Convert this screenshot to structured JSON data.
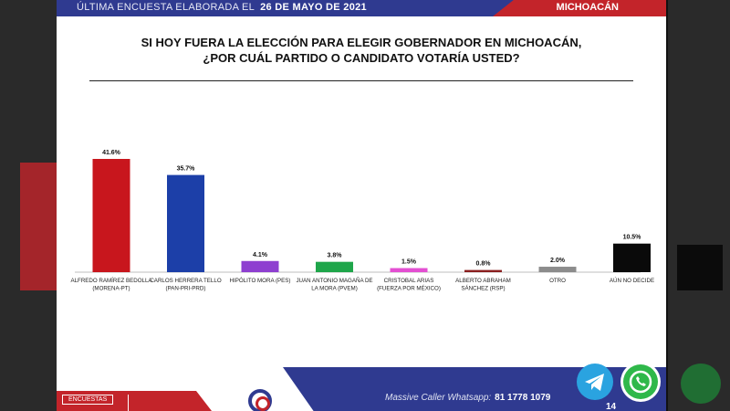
{
  "header": {
    "survey_label": "ÚLTIMA ENCUESTA ELABORADA EL",
    "survey_date": "26 DE MAYO DE 2021",
    "region": "MICHOACÁN"
  },
  "question": {
    "line1": "SI HOY FUERA LA ELECCIÓN PARA ELEGIR GOBERNADOR EN MICHOACÁN,",
    "line2": "¿POR CUÁL PARTIDO O CANDIDATO VOTARÍA USTED?"
  },
  "chart_data": {
    "type": "bar",
    "categories": [
      [
        "ALFREDO RAMÍREZ BEDOLLA",
        "(MORENA-PT)"
      ],
      [
        "CARLOS HERRERA TELLO",
        "(PAN-PRI-PRD)"
      ],
      [
        "HIPÓLITO MORA (PES)"
      ],
      [
        "JUAN ANTONIO MAGAÑA DE",
        "LA MORA (PVEM)"
      ],
      [
        "CRISTOBAL ARIAS",
        "(FUERZA POR MÉXICO)"
      ],
      [
        "ALBERTO ABRAHAM",
        "SÁNCHEZ (RSP)"
      ],
      [
        "OTRO"
      ],
      [
        "AÚN NO DECIDE"
      ]
    ],
    "values": [
      41.6,
      35.7,
      4.1,
      3.8,
      1.5,
      0.8,
      2.0,
      10.5
    ],
    "value_labels": [
      "41.6%",
      "35.7%",
      "4.1%",
      "3.8%",
      "1.5%",
      "0.8%",
      "2.0%",
      "10.5%"
    ],
    "colors": [
      "#c8161d",
      "#1c3fa8",
      "#8e3fd0",
      "#1fa64a",
      "#e34fd2",
      "#8a1f1f",
      "#8c8c8c",
      "#0a0a0a"
    ],
    "ylim": [
      0,
      45
    ],
    "grid": false,
    "legend": "none"
  },
  "footer": {
    "badge": "ENCUESTAS",
    "contact_label": "Massive Caller Whatsapp:",
    "contact_number": "81 1778 1079",
    "page": "14"
  },
  "overlay_icons": [
    "telegram-icon",
    "whatsapp-icon"
  ]
}
